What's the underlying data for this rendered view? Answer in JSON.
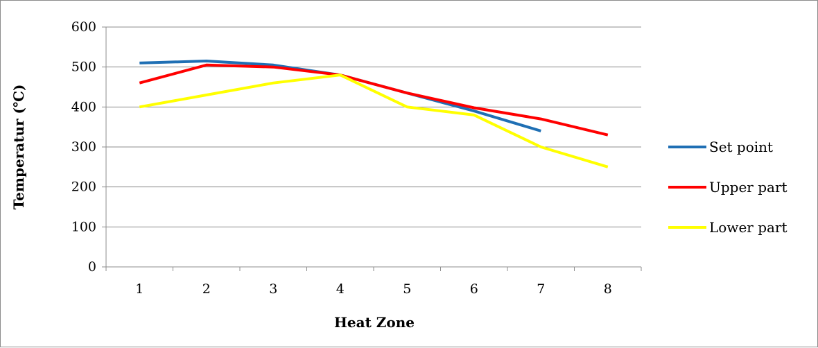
{
  "chart_data": {
    "type": "line",
    "title": "",
    "xlabel": "Heat Zone",
    "ylabel": "Temperatur (℃)",
    "categories": [
      "1",
      "2",
      "3",
      "4",
      "5",
      "6",
      "7",
      "8"
    ],
    "ylim": [
      0,
      600
    ],
    "yticks": [
      0,
      100,
      200,
      300,
      400,
      500,
      600
    ],
    "grid": "horizontal",
    "legend_position": "right",
    "series": [
      {
        "name": "Set point",
        "color": "#1f6fb4",
        "values": [
          510,
          515,
          505,
          480,
          435,
          390,
          340,
          null
        ]
      },
      {
        "name": "Upper part",
        "color": "#ff0000",
        "values": [
          460,
          505,
          500,
          480,
          435,
          398,
          370,
          330
        ]
      },
      {
        "name": "Lower part",
        "color": "#ffff00",
        "values": [
          400,
          430,
          460,
          480,
          400,
          380,
          300,
          250
        ]
      }
    ]
  }
}
